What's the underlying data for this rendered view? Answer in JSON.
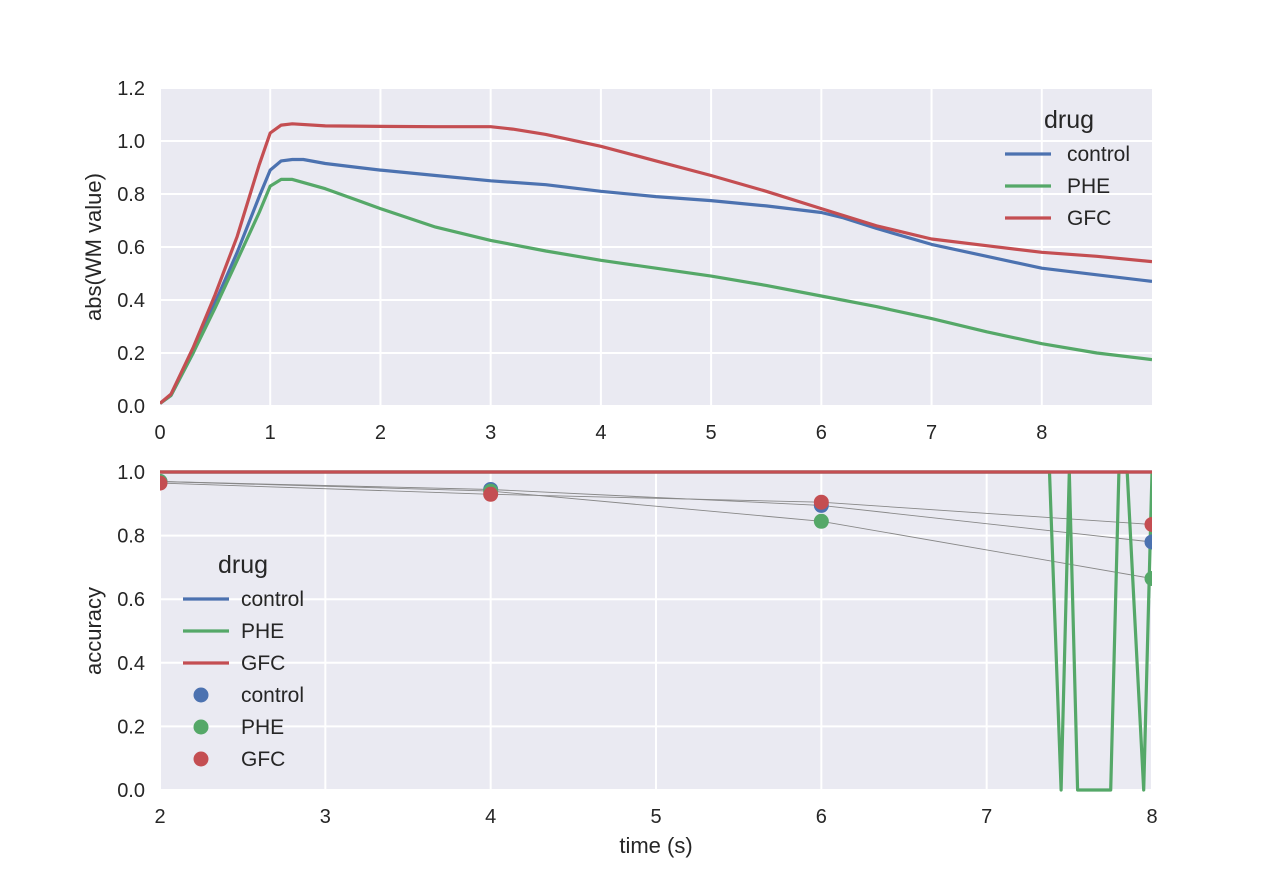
{
  "chart_data": [
    {
      "type": "line",
      "title": "",
      "xlabel": "",
      "ylabel": "abs(WM value)",
      "xlim": [
        0,
        9
      ],
      "ylim": [
        0,
        1.2
      ],
      "xticks": [
        "0",
        "1",
        "2",
        "3",
        "4",
        "5",
        "6",
        "7",
        "8"
      ],
      "yticks": [
        "0.0",
        "0.2",
        "0.4",
        "0.6",
        "0.8",
        "1.0",
        "1.2"
      ],
      "grid": true,
      "legend": {
        "title": "drug",
        "position": "top-right"
      },
      "series": [
        {
          "name": "control",
          "color": "#4C72B0",
          "points": [
            [
              0,
              0.01
            ],
            [
              0.1,
              0.04
            ],
            [
              0.3,
              0.2
            ],
            [
              0.5,
              0.39
            ],
            [
              0.7,
              0.58
            ],
            [
              0.9,
              0.79
            ],
            [
              1.0,
              0.89
            ],
            [
              1.1,
              0.925
            ],
            [
              1.2,
              0.93
            ],
            [
              1.3,
              0.93
            ],
            [
              1.5,
              0.915
            ],
            [
              1.8,
              0.9
            ],
            [
              2,
              0.89
            ],
            [
              2.5,
              0.87
            ],
            [
              3,
              0.85
            ],
            [
              3.5,
              0.835
            ],
            [
              4,
              0.81
            ],
            [
              4.5,
              0.79
            ],
            [
              5,
              0.775
            ],
            [
              5.5,
              0.755
            ],
            [
              6,
              0.73
            ],
            [
              6.2,
              0.71
            ],
            [
              6.5,
              0.67
            ],
            [
              7,
              0.61
            ],
            [
              7.5,
              0.565
            ],
            [
              8,
              0.52
            ],
            [
              8.5,
              0.495
            ],
            [
              9,
              0.47
            ]
          ]
        },
        {
          "name": "PHE",
          "color": "#55A868",
          "points": [
            [
              0,
              0.01
            ],
            [
              0.1,
              0.04
            ],
            [
              0.3,
              0.2
            ],
            [
              0.5,
              0.37
            ],
            [
              0.7,
              0.55
            ],
            [
              0.9,
              0.73
            ],
            [
              1.0,
              0.83
            ],
            [
              1.1,
              0.855
            ],
            [
              1.2,
              0.855
            ],
            [
              1.5,
              0.82
            ],
            [
              1.8,
              0.775
            ],
            [
              2,
              0.745
            ],
            [
              2.5,
              0.675
            ],
            [
              3,
              0.625
            ],
            [
              3.5,
              0.585
            ],
            [
              4,
              0.55
            ],
            [
              4.5,
              0.52
            ],
            [
              5,
              0.49
            ],
            [
              5.5,
              0.455
            ],
            [
              6,
              0.415
            ],
            [
              6.5,
              0.375
            ],
            [
              7,
              0.33
            ],
            [
              7.5,
              0.28
            ],
            [
              8,
              0.235
            ],
            [
              8.5,
              0.2
            ],
            [
              9,
              0.175
            ]
          ]
        },
        {
          "name": "GFC",
          "color": "#C44E52",
          "points": [
            [
              0,
              0.01
            ],
            [
              0.1,
              0.045
            ],
            [
              0.3,
              0.22
            ],
            [
              0.5,
              0.42
            ],
            [
              0.7,
              0.64
            ],
            [
              0.9,
              0.91
            ],
            [
              1.0,
              1.03
            ],
            [
              1.1,
              1.06
            ],
            [
              1.2,
              1.065
            ],
            [
              1.5,
              1.057
            ],
            [
              2,
              1.055
            ],
            [
              2.5,
              1.054
            ],
            [
              3,
              1.054
            ],
            [
              3.2,
              1.045
            ],
            [
              3.5,
              1.025
            ],
            [
              4,
              0.98
            ],
            [
              4.5,
              0.925
            ],
            [
              5,
              0.87
            ],
            [
              5.5,
              0.81
            ],
            [
              6,
              0.745
            ],
            [
              6.5,
              0.68
            ],
            [
              7,
              0.63
            ],
            [
              7.5,
              0.605
            ],
            [
              8,
              0.58
            ],
            [
              8.5,
              0.565
            ],
            [
              9,
              0.545
            ]
          ]
        }
      ]
    },
    {
      "type": "line",
      "title": "",
      "xlabel": "time (s)",
      "ylabel": "accuracy",
      "xlim": [
        2,
        8
      ],
      "ylim": [
        0,
        1
      ],
      "xticks": [
        "2",
        "3",
        "4",
        "5",
        "6",
        "7",
        "8"
      ],
      "yticks": [
        "0.0",
        "0.2",
        "0.4",
        "0.6",
        "0.8",
        "1.0"
      ],
      "grid": true,
      "legend": {
        "title": "drug",
        "position": "center-left"
      },
      "series": [
        {
          "name": "control",
          "kind": "line",
          "color": "#4C72B0",
          "points": [
            [
              2,
              1
            ],
            [
              8,
              1
            ]
          ]
        },
        {
          "name": "PHE",
          "kind": "line",
          "color": "#55A868",
          "points": [
            [
              2,
              1
            ],
            [
              7.38,
              1
            ],
            [
              7.45,
              0
            ],
            [
              7.5,
              1
            ],
            [
              7.55,
              0
            ],
            [
              7.75,
              0
            ],
            [
              7.8,
              1
            ],
            [
              7.85,
              1
            ],
            [
              7.95,
              0
            ],
            [
              8,
              1
            ]
          ]
        },
        {
          "name": "GFC",
          "kind": "line",
          "color": "#C44E52",
          "points": [
            [
              2,
              1
            ],
            [
              8,
              1
            ]
          ]
        },
        {
          "name": "control",
          "kind": "markers",
          "color": "#4C72B0",
          "points": [
            [
              2,
              0.97
            ],
            [
              4,
              0.945
            ],
            [
              6,
              0.895
            ],
            [
              8,
              0.78
            ]
          ]
        },
        {
          "name": "PHE",
          "kind": "markers",
          "color": "#55A868",
          "points": [
            [
              2,
              0.97
            ],
            [
              4,
              0.94
            ],
            [
              6,
              0.845
            ],
            [
              8,
              0.665
            ]
          ]
        },
        {
          "name": "GFC",
          "kind": "markers",
          "color": "#C44E52",
          "points": [
            [
              2,
              0.965
            ],
            [
              4,
              0.93
            ],
            [
              6,
              0.905
            ],
            [
              8,
              0.835
            ]
          ]
        }
      ]
    }
  ]
}
